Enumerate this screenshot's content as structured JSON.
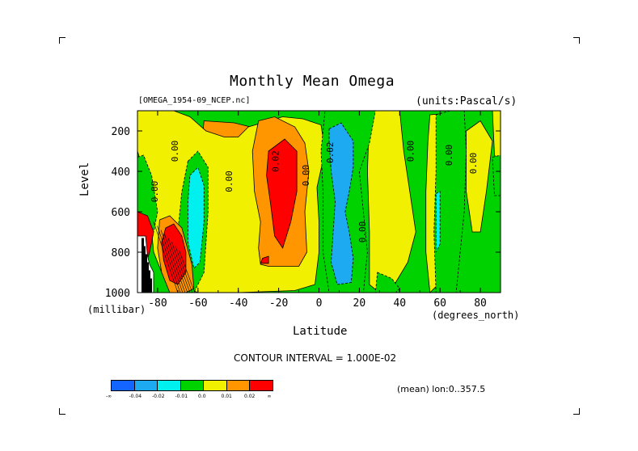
{
  "figure": {
    "title": "Monthly Mean Omega",
    "dataset": "[OMEGA_1954-09_NCEP.nc]",
    "units": "(units:Pascal/s)",
    "contour_interval": "CONTOUR INTERVAL = 1.000E-02",
    "mean_note": "(mean) lon:0..357.5"
  },
  "colorbar": {
    "labels": [
      "-∞",
      "-0.04",
      "-0.02",
      "-0.01",
      "0.0",
      "0.01",
      "0.02",
      "∞"
    ],
    "colors": [
      "#1464ff",
      "#1eaaf0",
      "#00f0f0",
      "#00d200",
      "#f0f000",
      "#ff9600",
      "#ff0000"
    ]
  },
  "chart_data": {
    "type": "heatmap",
    "title": "Monthly Mean Omega",
    "xlabel": "Latitude",
    "xunits": "(degrees_north)",
    "ylabel": "Level",
    "yunits": "(millibar)",
    "xlim": [
      -90,
      90
    ],
    "ylim": [
      1000,
      100
    ],
    "xticks": [
      -80,
      -60,
      -40,
      -20,
      0,
      20,
      40,
      60,
      80
    ],
    "xtick_labels": [
      "-80",
      "-60",
      "-40",
      "-20",
      "0",
      "20",
      "40",
      "60",
      "80"
    ],
    "yticks": [
      200,
      400,
      600,
      800,
      1000
    ],
    "ytick_labels": [
      "200",
      "400",
      "600",
      "800",
      "1000"
    ],
    "contour_labels": [
      {
        "text": "0.00",
        "lat": -80,
        "lev": 500
      },
      {
        "text": "0.00",
        "lat": -70,
        "lev": 300
      },
      {
        "text": "0.00",
        "lat": -43,
        "lev": 450
      },
      {
        "text": "0.02",
        "lat": -20,
        "lev": 350
      },
      {
        "text": "0.00",
        "lat": -5,
        "lev": 420
      },
      {
        "text": "-0.02",
        "lat": 7,
        "lev": 320
      },
      {
        "text": "0.00",
        "lat": 23,
        "lev": 700
      },
      {
        "text": "0.00",
        "lat": 47,
        "lev": 300
      },
      {
        "text": "0.00",
        "lat": 66,
        "lev": 320
      },
      {
        "text": "0.00",
        "lat": 78,
        "lev": 360
      }
    ],
    "regions": [
      {
        "category": "positive",
        "level_index": 5,
        "points": [
          [
            -57,
            150
          ],
          [
            -42,
            160
          ],
          [
            -26,
            200
          ],
          [
            -15,
            250
          ],
          [
            -5,
            300
          ],
          [
            -2,
            400
          ],
          [
            -4,
            500
          ],
          [
            -2,
            600
          ],
          [
            -2,
            700
          ],
          [
            -5,
            800
          ],
          [
            -8,
            870
          ],
          [
            -20,
            880
          ],
          [
            -30,
            940
          ],
          [
            -37,
            930
          ],
          [
            -50,
            900
          ],
          [
            -55,
            800
          ],
          [
            -53,
            600
          ],
          [
            -55,
            400
          ],
          [
            -58,
            250
          ]
        ]
      },
      {
        "category": "positive",
        "level_index": 4,
        "points": [
          [
            -90,
            100
          ],
          [
            -72,
            100
          ],
          [
            -64,
            130
          ],
          [
            -56,
            200
          ],
          [
            -47,
            230
          ],
          [
            -40,
            230
          ],
          [
            -35,
            180
          ],
          [
            -18,
            130
          ],
          [
            -8,
            140
          ],
          [
            1,
            170
          ],
          [
            3,
            300
          ],
          [
            -1,
            480
          ],
          [
            0,
            650
          ],
          [
            0,
            800
          ],
          [
            -2,
            960
          ],
          [
            -12,
            990
          ],
          [
            -40,
            1000
          ],
          [
            -60,
            1000
          ],
          [
            -70,
            960
          ],
          [
            -78,
            900
          ],
          [
            -82,
            800
          ],
          [
            -84,
            600
          ],
          [
            -87,
            400
          ],
          [
            -90,
            300
          ]
        ]
      },
      {
        "category": "positive",
        "level_index": 4,
        "points": [
          [
            25,
            100
          ],
          [
            40,
            100
          ],
          [
            42,
            300
          ],
          [
            45,
            500
          ],
          [
            48,
            700
          ],
          [
            44,
            850
          ],
          [
            38,
            950
          ],
          [
            30,
            1000
          ],
          [
            25,
            960
          ],
          [
            25,
            700
          ],
          [
            24,
            400
          ]
        ]
      },
      {
        "category": "positive",
        "level_index": 4,
        "points": [
          [
            55,
            120
          ],
          [
            67,
            110
          ],
          [
            68,
            300
          ],
          [
            67,
            600
          ],
          [
            65,
            800
          ],
          [
            60,
            950
          ],
          [
            55,
            1000
          ],
          [
            53,
            800
          ],
          [
            53,
            500
          ],
          [
            54,
            250
          ]
        ]
      },
      {
        "category": "positive",
        "level_index": 4,
        "points": [
          [
            73,
            200
          ],
          [
            80,
            150
          ],
          [
            86,
            250
          ],
          [
            83,
            500
          ],
          [
            80,
            700
          ],
          [
            76,
            700
          ],
          [
            73,
            500
          ]
        ]
      },
      {
        "category": "positive",
        "level_index": 4,
        "points": [
          [
            86,
            100
          ],
          [
            90,
            100
          ],
          [
            90,
            350
          ],
          [
            87,
            320
          ]
        ]
      },
      {
        "category": "positive",
        "level_index": 5,
        "points": [
          [
            -30,
            150
          ],
          [
            -22,
            130
          ],
          [
            -12,
            180
          ],
          [
            -7,
            260
          ],
          [
            -5,
            400
          ],
          [
            -7,
            600
          ],
          [
            -6,
            800
          ],
          [
            -10,
            870
          ],
          [
            -25,
            870
          ],
          [
            -29,
            860
          ],
          [
            -30,
            780
          ],
          [
            -29,
            650
          ],
          [
            -32,
            500
          ],
          [
            -33,
            300
          ]
        ]
      },
      {
        "category": "positive",
        "level_index": 6,
        "points": [
          [
            -25,
            300
          ],
          [
            -17,
            240
          ],
          [
            -11,
            300
          ],
          [
            -11,
            500
          ],
          [
            -14,
            650
          ],
          [
            -18,
            780
          ],
          [
            -22,
            720
          ],
          [
            -24,
            560
          ],
          [
            -26,
            420
          ]
        ]
      },
      {
        "category": "positive",
        "level_index": 6,
        "points": [
          [
            -28,
            830
          ],
          [
            -25,
            820
          ],
          [
            -25,
            855
          ],
          [
            -29,
            855
          ]
        ]
      },
      {
        "category": "negative",
        "level_index": 3,
        "points": [
          [
            3,
            100
          ],
          [
            28,
            100
          ],
          [
            25,
            260
          ],
          [
            20,
            400
          ],
          [
            22,
            600
          ],
          [
            24,
            800
          ],
          [
            22,
            1000
          ],
          [
            5,
            1000
          ],
          [
            2,
            800
          ],
          [
            2,
            500
          ],
          [
            1,
            300
          ]
        ]
      },
      {
        "category": "negative",
        "level_index": 3,
        "points": [
          [
            -65,
            350
          ],
          [
            -60,
            300
          ],
          [
            -55,
            380
          ],
          [
            -55,
            600
          ],
          [
            -57,
            900
          ],
          [
            -62,
            1000
          ],
          [
            -68,
            1000
          ],
          [
            -70,
            700
          ],
          [
            -68,
            500
          ]
        ]
      },
      {
        "category": "negative",
        "level_index": 3,
        "points": [
          [
            -90,
            330
          ],
          [
            -87,
            320
          ],
          [
            -83,
            420
          ],
          [
            -80,
            600
          ],
          [
            -82,
            700
          ],
          [
            -90,
            700
          ]
        ]
      },
      {
        "category": "negative",
        "level_index": 3,
        "points": [
          [
            58,
            120
          ],
          [
            65,
            100
          ],
          [
            72,
            100
          ],
          [
            73,
            300
          ],
          [
            72,
            600
          ],
          [
            70,
            800
          ],
          [
            68,
            1000
          ],
          [
            58,
            1000
          ],
          [
            57,
            700
          ],
          [
            58,
            400
          ]
        ]
      },
      {
        "category": "negative",
        "level_index": 3,
        "points": [
          [
            86,
            330
          ],
          [
            90,
            320
          ],
          [
            90,
            520
          ],
          [
            87,
            520
          ]
        ]
      },
      {
        "category": "negative",
        "level_index": 3,
        "points": [
          [
            29,
            900
          ],
          [
            36,
            930
          ],
          [
            40,
            980
          ],
          [
            38,
            1000
          ],
          [
            28,
            1000
          ]
        ]
      },
      {
        "category": "negative",
        "level_index": 1,
        "points": [
          [
            5,
            190
          ],
          [
            11,
            160
          ],
          [
            17,
            250
          ],
          [
            17,
            380
          ],
          [
            15,
            500
          ],
          [
            13,
            600
          ],
          [
            15,
            700
          ],
          [
            17,
            830
          ],
          [
            16,
            950
          ],
          [
            9,
            960
          ],
          [
            6,
            850
          ],
          [
            7,
            700
          ],
          [
            8,
            550
          ],
          [
            6,
            400
          ],
          [
            5,
            250
          ]
        ]
      },
      {
        "category": "negative",
        "level_index": 2,
        "points": [
          [
            -64,
            420
          ],
          [
            -60,
            380
          ],
          [
            -57,
            470
          ],
          [
            -57,
            650
          ],
          [
            -59,
            850
          ],
          [
            -62,
            880
          ],
          [
            -65,
            750
          ],
          [
            -65,
            550
          ]
        ]
      },
      {
        "category": "negative",
        "level_index": 2,
        "points": [
          [
            -75,
            840
          ],
          [
            -70,
            820
          ],
          [
            -65,
            860
          ],
          [
            -66,
            930
          ],
          [
            -72,
            950
          ]
        ]
      },
      {
        "category": "negative",
        "level_index": 2,
        "points": [
          [
            58,
            510
          ],
          [
            60,
            500
          ],
          [
            60,
            760
          ],
          [
            58,
            800
          ]
        ]
      },
      {
        "category": "positive",
        "level_index": 5,
        "points": [
          [
            -79,
            640
          ],
          [
            -74,
            620
          ],
          [
            -68,
            680
          ],
          [
            -63,
            860
          ],
          [
            -62,
            980
          ],
          [
            -66,
            1000
          ],
          [
            -74,
            1000
          ],
          [
            -78,
            900
          ],
          [
            -80,
            780
          ]
        ]
      },
      {
        "category": "positive",
        "level_index": 6,
        "points": [
          [
            -76,
            680
          ],
          [
            -72,
            660
          ],
          [
            -68,
            720
          ],
          [
            -66,
            800
          ],
          [
            -66,
            900
          ],
          [
            -70,
            960
          ],
          [
            -74,
            940
          ],
          [
            -77,
            840
          ],
          [
            -78,
            750
          ]
        ]
      },
      {
        "category": "positive",
        "level_index": 6,
        "points": [
          [
            -90,
            600
          ],
          [
            -85,
            620
          ],
          [
            -82,
            700
          ],
          [
            -84,
            800
          ],
          [
            -87,
            900
          ],
          [
            -90,
            900
          ]
        ]
      },
      {
        "category": "missing",
        "level_index": -1,
        "points": [
          [
            -90,
            720
          ],
          [
            -86,
            720
          ],
          [
            -85,
            820
          ],
          [
            -84,
            860
          ],
          [
            -82,
            900
          ],
          [
            -82,
            1000
          ],
          [
            -90,
            1000
          ]
        ]
      }
    ]
  }
}
